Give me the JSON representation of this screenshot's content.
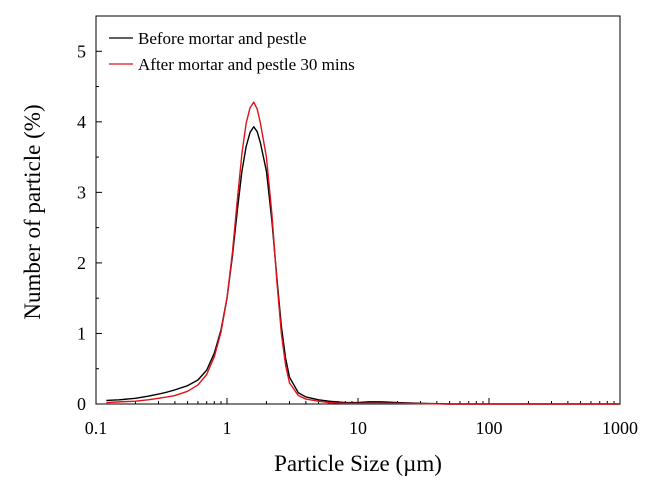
{
  "chart_data": {
    "type": "line",
    "title": "",
    "xlabel": "Particle Size (µm)",
    "ylabel": "Number of particle (%)",
    "xscale": "log",
    "xlim": [
      0.1,
      1000
    ],
    "ylim": [
      0,
      5.5
    ],
    "grid": false,
    "legend_position": "top-left",
    "x_ticks": [
      {
        "value": 0.1,
        "label": "0.1"
      },
      {
        "value": 1,
        "label": "1"
      },
      {
        "value": 10,
        "label": "10"
      },
      {
        "value": 100,
        "label": "100"
      },
      {
        "value": 1000,
        "label": "1000"
      }
    ],
    "y_ticks": [
      {
        "value": 0,
        "label": "0"
      },
      {
        "value": 1,
        "label": "1"
      },
      {
        "value": 2,
        "label": "2"
      },
      {
        "value": 3,
        "label": "3"
      },
      {
        "value": 4,
        "label": "4"
      },
      {
        "value": 5,
        "label": "5"
      }
    ],
    "series": [
      {
        "name": "Before mortar and pestle",
        "color": "#000000",
        "points": [
          [
            0.12,
            0.05
          ],
          [
            0.15,
            0.06
          ],
          [
            0.2,
            0.08
          ],
          [
            0.25,
            0.11
          ],
          [
            0.3,
            0.14
          ],
          [
            0.35,
            0.17
          ],
          [
            0.4,
            0.2
          ],
          [
            0.5,
            0.26
          ],
          [
            0.6,
            0.34
          ],
          [
            0.7,
            0.48
          ],
          [
            0.8,
            0.72
          ],
          [
            0.9,
            1.05
          ],
          [
            1.0,
            1.5
          ],
          [
            1.1,
            2.1
          ],
          [
            1.2,
            2.75
          ],
          [
            1.3,
            3.3
          ],
          [
            1.4,
            3.65
          ],
          [
            1.5,
            3.85
          ],
          [
            1.6,
            3.93
          ],
          [
            1.7,
            3.86
          ],
          [
            1.8,
            3.7
          ],
          [
            2.0,
            3.3
          ],
          [
            2.2,
            2.6
          ],
          [
            2.4,
            1.8
          ],
          [
            2.6,
            1.1
          ],
          [
            2.8,
            0.65
          ],
          [
            3.0,
            0.38
          ],
          [
            3.5,
            0.16
          ],
          [
            4.0,
            0.1
          ],
          [
            5.0,
            0.06
          ],
          [
            6.0,
            0.04
          ],
          [
            8.0,
            0.02
          ],
          [
            10.0,
            0.02
          ],
          [
            12.0,
            0.03
          ],
          [
            15.0,
            0.03
          ],
          [
            20.0,
            0.02
          ],
          [
            30.0,
            0.01
          ],
          [
            50.0,
            0.0
          ],
          [
            100.0,
            0.0
          ],
          [
            1000.0,
            0.0
          ]
        ]
      },
      {
        "name": "After mortar and pestle 30 mins",
        "color": "#e0121a",
        "points": [
          [
            0.12,
            0.02
          ],
          [
            0.15,
            0.03
          ],
          [
            0.2,
            0.04
          ],
          [
            0.25,
            0.06
          ],
          [
            0.3,
            0.08
          ],
          [
            0.35,
            0.1
          ],
          [
            0.4,
            0.12
          ],
          [
            0.5,
            0.18
          ],
          [
            0.6,
            0.27
          ],
          [
            0.7,
            0.42
          ],
          [
            0.8,
            0.67
          ],
          [
            0.9,
            1.02
          ],
          [
            1.0,
            1.5
          ],
          [
            1.1,
            2.15
          ],
          [
            1.2,
            2.9
          ],
          [
            1.3,
            3.55
          ],
          [
            1.4,
            3.98
          ],
          [
            1.5,
            4.2
          ],
          [
            1.6,
            4.28
          ],
          [
            1.7,
            4.18
          ],
          [
            1.8,
            3.98
          ],
          [
            2.0,
            3.5
          ],
          [
            2.2,
            2.7
          ],
          [
            2.4,
            1.75
          ],
          [
            2.6,
            1.0
          ],
          [
            2.8,
            0.55
          ],
          [
            3.0,
            0.3
          ],
          [
            3.5,
            0.12
          ],
          [
            4.0,
            0.07
          ],
          [
            5.0,
            0.04
          ],
          [
            6.0,
            0.02
          ],
          [
            8.0,
            0.01
          ],
          [
            10.0,
            0.01
          ],
          [
            15.0,
            0.01
          ],
          [
            20.0,
            0.01
          ],
          [
            50.0,
            0.0
          ],
          [
            100.0,
            0.0
          ],
          [
            1000.0,
            0.0
          ]
        ]
      }
    ]
  }
}
